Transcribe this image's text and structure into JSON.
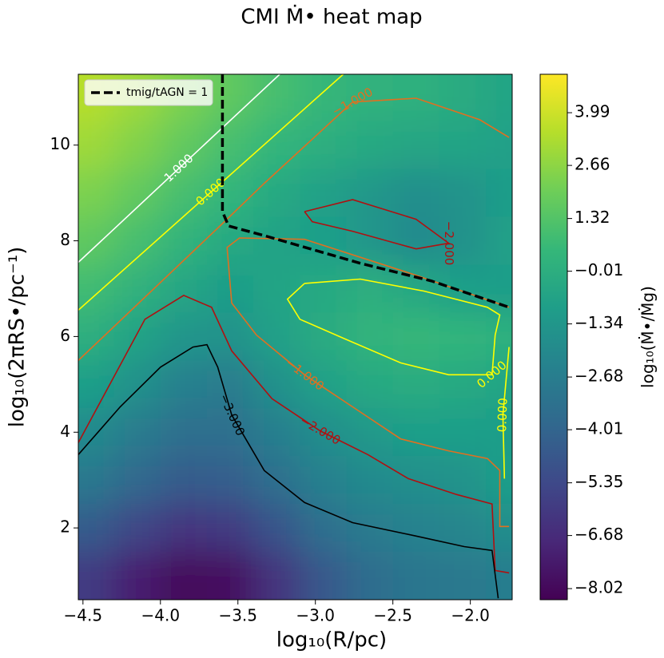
{
  "chart_data": {
    "type": "contour",
    "title": "CMI Ṁ• heat map",
    "x_label": "log₁₀(R/pc)",
    "y_label": "log₁₀(2πRS•/pc⁻¹)",
    "colorbar_label": "log₁₀(Ṁ•/Ṁg)",
    "colormap": "viridis",
    "xlim": [
      -4.53,
      -1.73
    ],
    "ylim": [
      0.5,
      11.48
    ],
    "xticks": [
      {
        "value": -4.5,
        "label": "−4.5"
      },
      {
        "value": -4.0,
        "label": "−4.0"
      },
      {
        "value": -3.5,
        "label": "−3.5"
      },
      {
        "value": -3.0,
        "label": "−3.0"
      },
      {
        "value": -2.5,
        "label": "−2.5"
      },
      {
        "value": -2.0,
        "label": "−2.0"
      }
    ],
    "yticks": [
      2,
      4,
      6,
      8,
      10
    ],
    "clim": [
      -8.3,
      4.96
    ],
    "cticks": [
      3.99,
      2.66,
      1.32,
      {
        "value": -0.01,
        "label": "−0.01"
      },
      {
        "value": -1.34,
        "label": "−1.34"
      },
      {
        "value": -2.68,
        "label": "−2.68"
      },
      {
        "value": -4.01,
        "label": "−4.01"
      },
      {
        "value": -5.35,
        "label": "−5.35"
      },
      {
        "value": -6.68,
        "label": "−6.68"
      },
      {
        "value": -8.02,
        "label": "−8.02"
      }
    ],
    "x": [
      -4.45,
      -4.15,
      -3.85,
      -3.55,
      -3.25,
      -2.95,
      -2.65,
      -2.35,
      -2.05,
      -1.75
    ],
    "y": [
      11,
      10,
      9,
      8,
      7,
      6,
      5,
      4,
      3,
      2,
      1
    ],
    "z": [
      [
        3.5,
        3.0,
        2.3,
        1.6,
        1.0,
        0.5,
        0.2,
        0.1,
        -0.2,
        -0.6
      ],
      [
        3.0,
        2.4,
        1.7,
        1.0,
        0.4,
        0.0,
        -0.3,
        -0.5,
        -0.6,
        -0.8
      ],
      [
        2.3,
        1.7,
        1.0,
        0.4,
        -0.3,
        -0.8,
        -1.3,
        -1.8,
        -1.5,
        -1.0
      ],
      [
        1.6,
        1.0,
        0.3,
        -0.3,
        -0.7,
        -0.9,
        -1.4,
        -2.0,
        -1.6,
        -0.8
      ],
      [
        0.8,
        0.2,
        -0.5,
        -1.0,
        -0.6,
        -0.3,
        0.0,
        -0.4,
        -0.9,
        -1.0
      ],
      [
        0.0,
        -0.7,
        -1.4,
        -1.5,
        -0.8,
        -0.2,
        0.3,
        0.5,
        0.4,
        0.1
      ],
      [
        -0.9,
        -1.6,
        -2.5,
        -2.8,
        -1.6,
        -0.8,
        -0.3,
        -0.1,
        -0.3,
        -0.6
      ],
      [
        -2.0,
        -2.8,
        -3.5,
        -3.4,
        -2.6,
        -1.8,
        -1.2,
        -0.9,
        -0.9,
        -1.0
      ],
      [
        -3.0,
        -3.8,
        -4.5,
        -4.3,
        -3.4,
        -2.5,
        -2.0,
        -1.7,
        -1.5,
        -0.9
      ],
      [
        -4.5,
        -5.5,
        -6.2,
        -6.0,
        -4.8,
        -3.5,
        -2.8,
        -2.4,
        -2.2,
        -1.8
      ],
      [
        -6.0,
        -7.2,
        -8.0,
        -7.8,
        -6.3,
        -4.6,
        -3.6,
        -3.1,
        -2.9,
        -2.7
      ]
    ],
    "contours": [
      {
        "level": 1,
        "level_label": "1.000",
        "color": "#ffffff",
        "x": [
          -4.53,
          -3.23
        ],
        "y": [
          7.55,
          11.48
        ]
      },
      {
        "level": 0,
        "level_label": "0.000",
        "color": "#ffff00",
        "x": [
          -4.53,
          -2.82
        ],
        "y": [
          6.55,
          11.48
        ]
      },
      {
        "level": -1,
        "level_label": "−1.000",
        "color": "#e07020",
        "x": [
          -4.53,
          -3.6,
          -3.33,
          -2.76,
          -2.35,
          -1.94,
          -1.75
        ],
        "y": [
          5.5,
          8.36,
          9.2,
          10.9,
          10.98,
          10.53,
          10.16
        ]
      },
      {
        "level": -1,
        "level_label": "−1.000",
        "color": "#e07020",
        "x": [
          -1.75,
          -2.35,
          -3.07,
          -3.49,
          -3.57,
          -3.54,
          -3.38,
          -3.07,
          -2.76,
          -2.45,
          -2.14,
          -1.89,
          -1.81,
          -1.81,
          -1.75
        ],
        "y": [
          6.61,
          7.28,
          8.03,
          8.06,
          7.86,
          6.7,
          6.03,
          5.2,
          4.53,
          3.86,
          3.61,
          3.45,
          3.2,
          2.03,
          2.03
        ]
      },
      {
        "level": 0,
        "level_label": "0.000",
        "color": "#ffff00",
        "x": [
          -3.07,
          -2.71,
          -2.3,
          -1.89,
          -1.81,
          -1.84,
          -1.86,
          -2.14,
          -2.45,
          -2.81,
          -3.1,
          -3.18,
          -3.07
        ],
        "y": [
          7.11,
          7.2,
          6.95,
          6.61,
          6.45,
          6.03,
          5.2,
          5.2,
          5.45,
          5.95,
          6.36,
          6.78,
          7.11
        ]
      },
      {
        "level": 0,
        "level_label": "0.000",
        "color": "#ffff00",
        "x": [
          -1.75,
          -1.79,
          -1.78
        ],
        "y": [
          5.78,
          4.36,
          3.03
        ]
      },
      {
        "level": -2,
        "level_label": "−2.000",
        "color": "#b01010",
        "x": [
          -3.07,
          -2.76,
          -2.35,
          -2.14,
          -2.35,
          -2.76,
          -3.02,
          -3.07
        ],
        "y": [
          8.61,
          8.86,
          8.45,
          7.95,
          7.83,
          8.2,
          8.4,
          8.61
        ]
      },
      {
        "level": -2,
        "level_label": "−2.000",
        "color": "#b01010",
        "x": [
          -4.53,
          -4.1,
          -3.85,
          -3.67,
          -3.54,
          -3.28,
          -2.97,
          -2.66,
          -2.4,
          -2.09,
          -1.86,
          -1.84,
          -1.75
        ],
        "y": [
          3.78,
          6.36,
          6.86,
          6.61,
          5.7,
          4.7,
          4.03,
          3.53,
          3.03,
          2.7,
          2.5,
          1.11,
          1.06
        ]
      },
      {
        "level": -3,
        "level_label": "−3.000",
        "color": "#000000",
        "x": [
          -4.53,
          -4.26,
          -4.0,
          -3.79,
          -3.7,
          -3.63,
          -3.54,
          -3.33,
          -3.07,
          -2.76,
          -2.35,
          -2.04,
          -1.86,
          -1.82
        ],
        "y": [
          3.53,
          4.53,
          5.36,
          5.78,
          5.83,
          5.36,
          4.36,
          3.2,
          2.53,
          2.11,
          1.83,
          1.61,
          1.53,
          0.53
        ]
      }
    ],
    "series": [
      {
        "name": "tmig/tAGN = 1",
        "color": "#000000",
        "dashed": true,
        "x": [
          -3.6,
          -3.6,
          -3.56,
          -3.33,
          -2.71,
          -2.25,
          -1.75
        ],
        "y": [
          11.48,
          8.61,
          8.31,
          8.11,
          7.53,
          7.16,
          6.61
        ]
      }
    ],
    "legend": "upper left"
  }
}
